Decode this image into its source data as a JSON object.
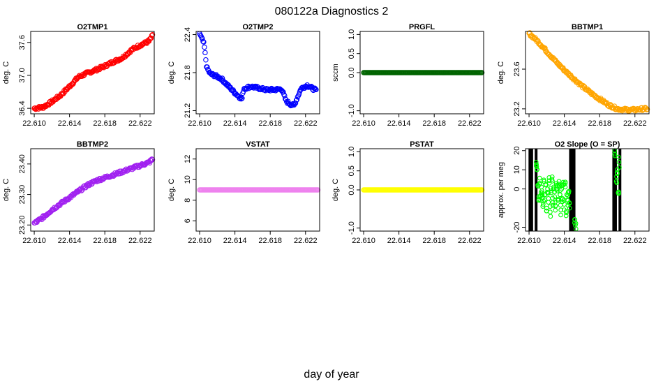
{
  "figure": {
    "title": "080122a   Diagnostics 2",
    "xlabel": "day of year"
  },
  "chart_data": [
    {
      "type": "scatter",
      "title": "O2TMP1",
      "ylabel": "deg. C",
      "xlim": [
        22.6096,
        22.6236
      ],
      "ylim": [
        36.3,
        37.8
      ],
      "xticks": [
        22.61,
        22.614,
        22.618,
        22.622
      ],
      "xtick_labels": [
        "22.610",
        "22.614",
        "22.618",
        "22.622"
      ],
      "yticks": [
        36.4,
        37.0,
        37.6
      ],
      "ytick_labels": [
        "36.4",
        "37.0",
        "37.6"
      ],
      "color": "#ff0000",
      "x": [
        22.61,
        22.611,
        22.612,
        22.613,
        22.614,
        22.615,
        22.616,
        22.617,
        22.618,
        22.619,
        22.62,
        22.621,
        22.622,
        22.623,
        22.6234
      ],
      "y": [
        36.4,
        36.42,
        36.52,
        36.64,
        36.8,
        36.97,
        37.04,
        37.1,
        37.17,
        37.25,
        37.32,
        37.46,
        37.55,
        37.62,
        37.72
      ]
    },
    {
      "type": "scatter",
      "title": "O2TMP2",
      "ylabel": "deg. C",
      "xlim": [
        22.6096,
        22.6236
      ],
      "ylim": [
        21.15,
        22.45
      ],
      "xticks": [
        22.61,
        22.614,
        22.618,
        22.622
      ],
      "xtick_labels": [
        "22.610",
        "22.614",
        "22.618",
        "22.622"
      ],
      "yticks": [
        21.2,
        21.8,
        22.4
      ],
      "ytick_labels": [
        "21.2",
        "21.8",
        "22.4"
      ],
      "color": "#0000ff",
      "x": [
        22.61,
        22.6105,
        22.6108,
        22.6112,
        22.6118,
        22.6125,
        22.6133,
        22.614,
        22.6148,
        22.615,
        22.6158,
        22.6165,
        22.6175,
        22.6185,
        22.6193,
        22.6198,
        22.6203,
        22.6207,
        22.6215,
        22.6222,
        22.6228,
        22.6232
      ],
      "y": [
        22.42,
        22.25,
        21.88,
        21.78,
        21.75,
        21.7,
        21.58,
        21.48,
        21.38,
        21.55,
        21.58,
        21.56,
        21.53,
        21.53,
        21.54,
        21.35,
        21.3,
        21.28,
        21.55,
        21.6,
        21.55,
        21.52
      ]
    },
    {
      "type": "scatter",
      "title": "PRGFL",
      "ylabel": "sccm",
      "xlim": [
        22.6096,
        22.6236
      ],
      "ylim": [
        -1.08,
        1.08
      ],
      "xticks": [
        22.61,
        22.614,
        22.618,
        22.622
      ],
      "xtick_labels": [
        "22.610",
        "22.614",
        "22.618",
        "22.622"
      ],
      "yticks": [
        -1.0,
        0.0,
        0.5,
        1.0
      ],
      "ytick_labels": [
        "-1.0",
        "0.0",
        "0.5",
        "1.0"
      ],
      "color": "#006400",
      "x": [
        22.61,
        22.6234
      ],
      "y": [
        0,
        0
      ]
    },
    {
      "type": "scatter",
      "title": "BBTMP1",
      "ylabel": "deg. C",
      "xlim": [
        22.6096,
        22.6236
      ],
      "ylim": [
        23.15,
        23.98
      ],
      "xticks": [
        22.61,
        22.614,
        22.618,
        22.622
      ],
      "xtick_labels": [
        "22.610",
        "22.614",
        "22.618",
        "22.622"
      ],
      "yticks": [
        23.2,
        23.6
      ],
      "ytick_labels": [
        "23.2",
        "23.6"
      ],
      "color": "#ffa500",
      "x": [
        22.61,
        22.611,
        22.612,
        22.613,
        22.614,
        22.615,
        22.616,
        22.617,
        22.618,
        22.619,
        22.62,
        22.621,
        22.622,
        22.623,
        22.6234
      ],
      "y": [
        23.96,
        23.88,
        23.78,
        23.68,
        23.59,
        23.51,
        23.43,
        23.36,
        23.3,
        23.24,
        23.2,
        23.19,
        23.19,
        23.2,
        23.2
      ]
    },
    {
      "type": "scatter",
      "title": "BBTMP2",
      "ylabel": "deg. C",
      "xlim": [
        22.6096,
        22.6236
      ],
      "ylim": [
        23.18,
        23.45
      ],
      "xticks": [
        22.61,
        22.614,
        22.618,
        22.622
      ],
      "xtick_labels": [
        "22.610",
        "22.614",
        "22.618",
        "22.622"
      ],
      "yticks": [
        23.2,
        23.3,
        23.4
      ],
      "ytick_labels": [
        "23.20",
        "23.30",
        "23.40"
      ],
      "color": "#a020f0",
      "x": [
        22.61,
        22.611,
        22.612,
        22.613,
        22.614,
        22.615,
        22.616,
        22.617,
        22.618,
        22.619,
        22.62,
        22.621,
        22.622,
        22.623,
        22.6234
      ],
      "y": [
        23.205,
        23.225,
        23.25,
        23.27,
        23.29,
        23.31,
        23.33,
        23.345,
        23.355,
        23.365,
        23.375,
        23.385,
        23.395,
        23.405,
        23.415
      ]
    },
    {
      "type": "scatter",
      "title": "VSTAT",
      "ylabel": "deg. C",
      "xlim": [
        22.6096,
        22.6236
      ],
      "ylim": [
        5.0,
        13.0
      ],
      "xticks": [
        22.61,
        22.614,
        22.618,
        22.622
      ],
      "xtick_labels": [
        "22.610",
        "22.614",
        "22.618",
        "22.622"
      ],
      "yticks": [
        6,
        8,
        10,
        12
      ],
      "ytick_labels": [
        "6",
        "8",
        "10",
        "12"
      ],
      "color": "#ee82ee",
      "x": [
        22.61,
        22.6234
      ],
      "y": [
        9,
        9
      ]
    },
    {
      "type": "scatter",
      "title": "PSTAT",
      "ylabel": "deg. C",
      "xlim": [
        22.6096,
        22.6236
      ],
      "ylim": [
        -1.08,
        1.08
      ],
      "xticks": [
        22.61,
        22.614,
        22.618,
        22.622
      ],
      "xtick_labels": [
        "22.610",
        "22.614",
        "22.618",
        "22.622"
      ],
      "yticks": [
        -1.0,
        0.0,
        0.5,
        1.0
      ],
      "ytick_labels": [
        "-1.0",
        "0.0",
        "0.5",
        "1.0"
      ],
      "color": "#ffff00",
      "x": [
        22.61,
        22.6234
      ],
      "y": [
        0,
        0
      ]
    },
    {
      "type": "scatter",
      "title": "O2 Slope (O = SP)",
      "ylabel": "approx. per meg",
      "xlim": [
        22.6096,
        22.6236
      ],
      "ylim": [
        -22,
        21
      ],
      "xticks": [
        22.61,
        22.614,
        22.618,
        22.622
      ],
      "xtick_labels": [
        "22.610",
        "22.614",
        "22.618",
        "22.622"
      ],
      "yticks": [
        -20,
        0,
        10,
        20
      ],
      "ytick_labels": [
        "-20",
        "0",
        "10",
        "20"
      ],
      "color": "#00ff00",
      "bar_color": "#000000",
      "vbars_x": [
        22.6101,
        22.6103,
        22.6108,
        22.6147,
        22.6149,
        22.6151,
        22.6196,
        22.6198,
        22.6203
      ],
      "x": [
        22.6108,
        22.6109,
        22.611,
        22.6111,
        22.6112,
        22.6113,
        22.6114,
        22.6115,
        22.6116,
        22.6117,
        22.6118,
        22.6119,
        22.612,
        22.6121,
        22.6122,
        22.6123,
        22.6124,
        22.6125,
        22.6126,
        22.6127,
        22.6128,
        22.6129,
        22.613,
        22.6131,
        22.6132,
        22.6133,
        22.6134,
        22.6135,
        22.6136,
        22.6137,
        22.6138,
        22.6139,
        22.614,
        22.6141,
        22.6142,
        22.6143,
        22.6144,
        22.6145,
        22.6146,
        22.6152,
        22.6153,
        22.6197,
        22.6199,
        22.62,
        22.6201,
        22.6202
      ],
      "y": [
        14,
        10,
        2,
        -4,
        3,
        -6,
        1,
        -2,
        -8,
        4,
        -3,
        2,
        -10,
        0,
        -5,
        3,
        -12,
        -2,
        5,
        -7,
        1,
        -4,
        -9,
        2,
        -1,
        -6,
        4,
        -3,
        -11,
        0,
        -5,
        2,
        -8,
        1,
        -14,
        -3,
        -6,
        -2,
        -10,
        -16,
        -18,
        20,
        4,
        8,
        -2,
        14
      ]
    }
  ]
}
